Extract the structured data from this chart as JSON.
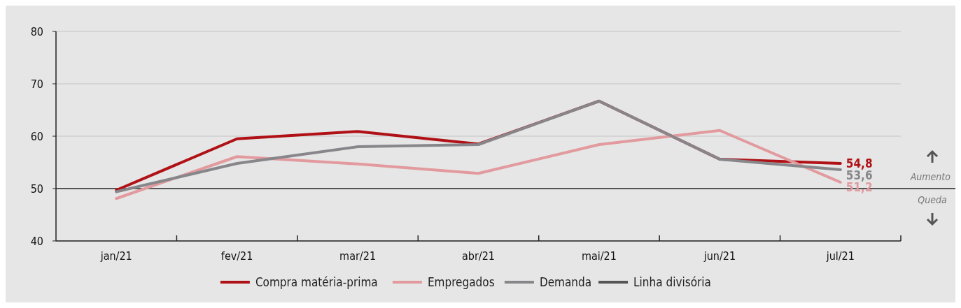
{
  "chart_data": {
    "type": "line",
    "categories": [
      "jan/21",
      "fev/21",
      "mar/21",
      "abr/21",
      "mai/21",
      "jun/21",
      "jul/21"
    ],
    "series": [
      {
        "name": "Compra matéria-prima",
        "color": "#b01116",
        "values": [
          49.7,
          59.5,
          60.9,
          58.5,
          66.7,
          55.6,
          54.8
        ],
        "value_labels": [
          null,
          null,
          null,
          null,
          null,
          null,
          "54,8"
        ]
      },
      {
        "name": "Empregados",
        "color": "#e29a9e",
        "values": [
          48.1,
          56.1,
          54.7,
          52.9,
          58.4,
          61.1,
          51.2
        ],
        "value_labels": [
          null,
          null,
          null,
          null,
          null,
          null,
          "51,2"
        ]
      },
      {
        "name": "Demanda",
        "color": "#87878b",
        "values": [
          49.4,
          54.8,
          58.0,
          58.4,
          66.7,
          55.6,
          53.6
        ],
        "value_labels": [
          null,
          null,
          null,
          null,
          null,
          null,
          "53,6"
        ]
      }
    ],
    "ylim": [
      40,
      80
    ],
    "yticks": [
      40,
      50,
      60,
      70,
      80
    ],
    "grid": "y",
    "legend": "bottom",
    "line_style": "solid",
    "marker": "none",
    "ref_lines": [
      {
        "axis": "y",
        "value": 50,
        "label": "Linha divisória",
        "color": "#555555"
      }
    ],
    "annotations": [
      "Aumento",
      "Queda"
    ]
  }
}
